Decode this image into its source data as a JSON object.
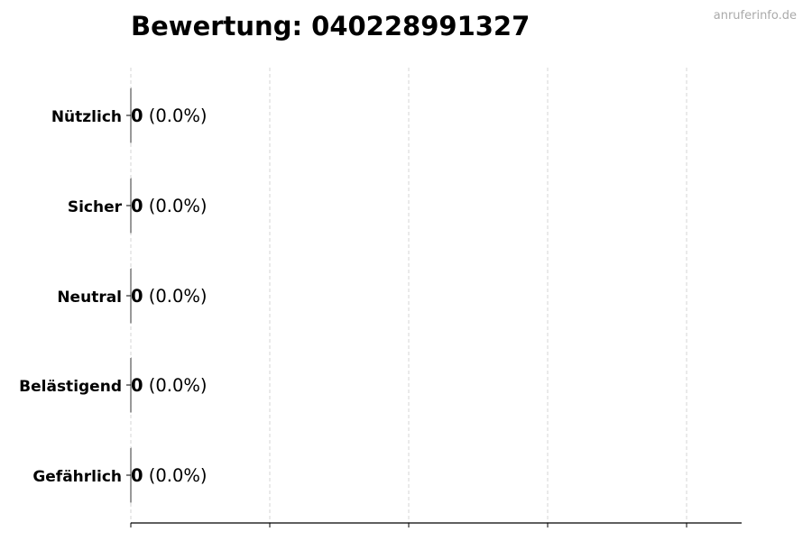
{
  "chart_data": {
    "type": "bar",
    "orientation": "horizontal",
    "title": "Bewertung: 040228991327",
    "watermark": "anruferinfo.de",
    "categories": [
      "Nützlich",
      "Sicher",
      "Neutral",
      "Belästigend",
      "Gefährlich"
    ],
    "values": [
      0,
      0,
      0,
      0,
      0
    ],
    "percent_labels": [
      "(0.0%)",
      "(0.0%)",
      "(0.0%)",
      "(0.0%)",
      "(0.0%)"
    ],
    "xlabel": "",
    "ylabel": "",
    "grid": "vertical dashed",
    "colors": {
      "bar_edge": "#333333",
      "grid": "#cccccc",
      "text": "#000000",
      "watermark": "#aaaaaa"
    }
  }
}
